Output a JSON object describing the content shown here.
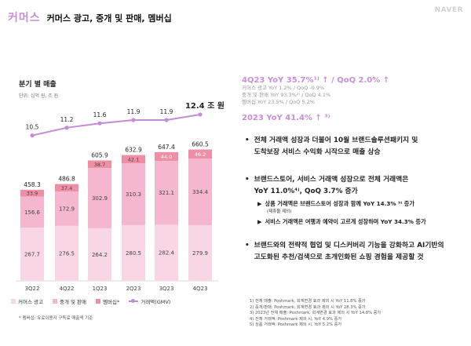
{
  "header": {
    "brand": "커머스",
    "title": "커머스 광고, 중개 및 판매, 멤버십",
    "logo": "NAVER"
  },
  "chart_title": "분기 별 매출",
  "chart_unit": "단위: 십억 원, 조 원",
  "chart_data": {
    "type": "bar",
    "stacked": true,
    "categories": [
      "3Q22",
      "4Q22",
      "1Q23",
      "2Q23",
      "3Q23",
      "4Q23"
    ],
    "series": [
      {
        "name": "커머스 광고",
        "values": [
          267.7,
          276.5,
          264.2,
          280.5,
          282.4,
          279.9
        ],
        "color": "#f9d6e6"
      },
      {
        "name": "중개 및 판매",
        "values": [
          156.6,
          172.9,
          302.9,
          310.3,
          321.1,
          334.4
        ],
        "color": "#f5b7d0"
      },
      {
        "name": "멤버십*",
        "values": [
          33.9,
          37.4,
          38.7,
          42.1,
          44.0,
          46.2
        ],
        "color": "#ee8fa5"
      }
    ],
    "totals": [
      "458.3",
      "486.8",
      "605.9",
      "632.9",
      "647.4",
      "660.5"
    ],
    "line": {
      "name": "거래액(GMV)",
      "values": [
        10.5,
        11.2,
        11.6,
        11.9,
        11.9,
        12.4
      ],
      "labels": [
        "10.5",
        "11.2",
        "11.6",
        "11.9",
        "11.9",
        "12.4 조 원"
      ],
      "color": "#c48bd6"
    }
  },
  "legend": {
    "ads": "커머스 광고",
    "brokerage": "중개 및 판매",
    "membership": "멤버십*",
    "gmv": "거래액(GMV)"
  },
  "footnote_left": "* 멤버십: 유료이용자 구독료 매출액 기준",
  "right": {
    "yoy_head": "4Q23 YoY 35.7%¹⁾ ↑ / QoQ 2.0% ↑",
    "yoy_lines": [
      "커머스 광고 YoY 1.2% / QoQ -0.9%",
      "중개 및 판매 YoY 93.3%²⁾ / QoQ 4.1%",
      "멤버십 YoY 23.5% / QoQ 5.2%"
    ],
    "yoy_2023": "2023 YoY 41.4% ↑ ³⁾"
  },
  "bullets": {
    "b1_l1": "전체 거래액 성장과 더불어 10월 브랜드솔루션패키지 및",
    "b1_l2": "도착보장 서비스 수익화 시작으로 매출 상승",
    "b2_l1": "브랜드스토어, 서비스 거래액 성장으로 전체 거래액은",
    "b2_l2": "YoY 11.0%⁴⁾, QoQ 3.7% 증가",
    "s1": "상품 거래액은 브랜드스토어 성장과 함께 YoY 14.3% ⁵⁾ 증가",
    "s1_note": "(제휴몰 제외)",
    "s2": "서비스 거래액은 여행과 예약이 고르게 성장하며 YoY 34.3% 증가",
    "b3_l1": "브랜드와의 전략적 협업 및 디스커버리 기능을 강화하고 AI기반의",
    "b3_l2": "고도화된 추천/검색으로 초개인화된 쇼핑 경험을 제공할 것"
  },
  "footnotes_right": [
    "1) 전체 매출: Poshmark, 회계변경 효과 제외 시 YoY 11.8% 증가",
    "2) 중개/판매: Poshmark, 회계변경 효과 제외 시 YoY 28.3% 증가",
    "3) 2023년 전체 매출: Poshmark, 회계변경 효과 제외 시 YoY 14.8% 증가",
    "4) 전체 거래액: Poshmark 제외 시, YoY 4.9% 증가",
    "5) 상품 거래액: Poshmark 제외 시, YoY 5.2% 증가"
  ]
}
